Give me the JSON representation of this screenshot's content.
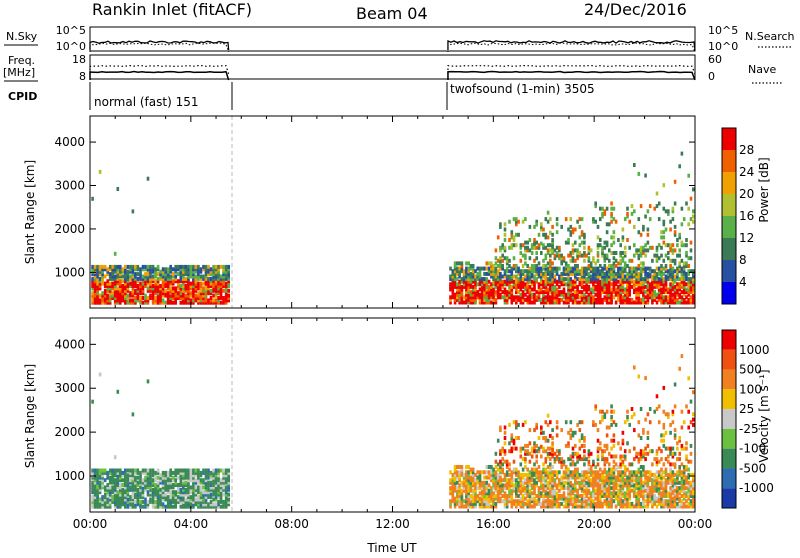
{
  "header": {
    "station": "Rankin Inlet (fitACF)",
    "beam": "Beam 04",
    "date": "24/Dec/2016"
  },
  "status_panels": {
    "nsky_label": "N.Sky",
    "nsky_ticks": [
      "10^5",
      "10^0"
    ],
    "nsearch_label": "N.Search",
    "nsearch_ticks": [
      "10^5",
      "10^0"
    ],
    "freq_label_1": "Freq.",
    "freq_label_2": "[MHz]",
    "freq_ticks": [
      "18",
      "8"
    ],
    "nave_label": "Nave",
    "nave_ticks": [
      "60",
      "0"
    ],
    "cpid_label": "CPID",
    "cpid_segments": [
      {
        "label": "normal (fast) 151",
        "start_hour": 0.0,
        "end_hour": 5.5
      },
      {
        "label": "twofsound (1-min) 3505",
        "start_hour": 14.2,
        "end_hour": 24.0
      }
    ]
  },
  "chart_data": [
    {
      "type": "heatmap",
      "name": "power-panel",
      "ylabel": "Slant Range [km]",
      "yticks": [
        1000,
        2000,
        3000,
        4000
      ],
      "ylim": [
        180,
        4600
      ],
      "xlim": [
        0,
        24
      ],
      "colorbar_label": "Power [dB]",
      "colorbar_ticks": [
        "28",
        "24",
        "20",
        "16",
        "12",
        "8",
        "4"
      ],
      "colors": [
        "#0000ee",
        "#2850a0",
        "#3a7a55",
        "#5ab048",
        "#b0c030",
        "#f0a000",
        "#f06000",
        "#ee0000"
      ],
      "data_windows_hours": [
        [
          0.0,
          5.5
        ],
        [
          14.2,
          24.0
        ]
      ]
    },
    {
      "type": "heatmap",
      "name": "velocity-panel",
      "ylabel": "Slant Range [km]",
      "yticks": [
        1000,
        2000,
        3000,
        4000
      ],
      "ylim": [
        180,
        4600
      ],
      "xlim": [
        0,
        24
      ],
      "xlabel": "Time UT",
      "xticks": [
        "00:00",
        "04:00",
        "08:00",
        "12:00",
        "16:00",
        "20:00",
        "00:00"
      ],
      "colorbar_label": "Velocity [m s⁻¹]",
      "colorbar_ticks": [
        "1000",
        "500",
        "100",
        "25",
        "-25",
        "-100",
        "-500",
        "-1000"
      ],
      "colors": [
        "#1a3aa8",
        "#2d6cb0",
        "#3a8a55",
        "#6cc040",
        "#c8c8c8",
        "#f0c000",
        "#f08020",
        "#f05010",
        "#ee0000"
      ],
      "data_windows_hours": [
        [
          0.0,
          5.5
        ],
        [
          14.2,
          24.0
        ]
      ]
    }
  ]
}
